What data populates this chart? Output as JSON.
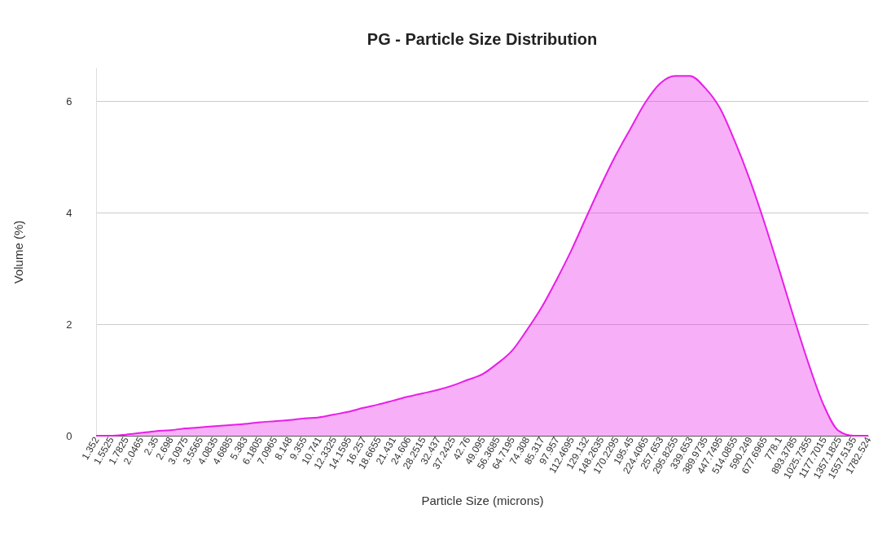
{
  "chart_data": {
    "type": "area",
    "title": "PG - Particle Size Distribution",
    "xlabel": "Particle Size (microns)",
    "ylabel": "Volume (%)",
    "categories": [
      "1.352",
      "1.5525",
      "1.7825",
      "2.0465",
      "2.35",
      "2.698",
      "3.0975",
      "3.5565",
      "4.0835",
      "4.6885",
      "5.383",
      "6.1805",
      "7.0965",
      "8.148",
      "9.355",
      "10.741",
      "12.3325",
      "14.1595",
      "16.257",
      "18.6655",
      "21.431",
      "24.606",
      "28.2515",
      "32.437",
      "37.2425",
      "42.76",
      "49.095",
      "56.3685",
      "64.7195",
      "74.308",
      "85.317",
      "97.957",
      "112.4695",
      "129.132",
      "148.2635",
      "170.2295",
      "195.45",
      "224.4065",
      "257.653",
      "295.8255",
      "339.653",
      "389.9735",
      "447.7495",
      "514.0855",
      "590.249",
      "677.6965",
      "778.1",
      "893.3785",
      "1025.7355",
      "1177.7015",
      "1357.1825",
      "1557.5135",
      "1782.524"
    ],
    "series": [
      {
        "color": "#e81ee8",
        "values": [
          0,
          0,
          0.02,
          0.05,
          0.08,
          0.1,
          0.13,
          0.15,
          0.17,
          0.19,
          0.21,
          0.24,
          0.26,
          0.28,
          0.31,
          0.33,
          0.38,
          0.43,
          0.5,
          0.56,
          0.63,
          0.7,
          0.76,
          0.82,
          0.9,
          1.0,
          1.1,
          1.29,
          1.52,
          1.89,
          2.3,
          2.79,
          3.32,
          3.91,
          4.49,
          5.03,
          5.51,
          5.98,
          6.32,
          6.45,
          6.45,
          6.24,
          5.88,
          5.29,
          4.61,
          3.83,
          2.98,
          2.11,
          1.28,
          0.55,
          0.09,
          0,
          0
        ]
      }
    ],
    "ylim": [
      0,
      6.6
    ],
    "yticks": [
      0,
      2,
      4,
      6
    ],
    "grid": "y",
    "legend": false
  }
}
